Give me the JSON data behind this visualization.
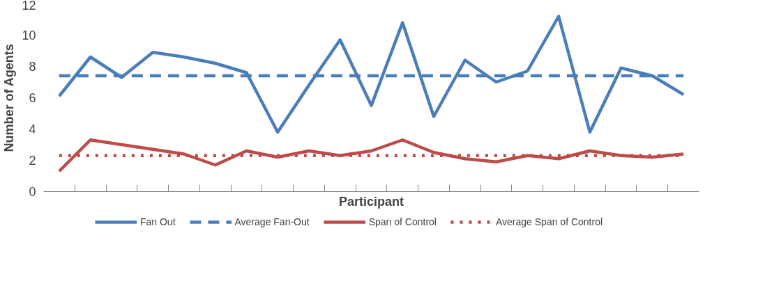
{
  "chart_data": {
    "type": "line",
    "xlabel": "Participant",
    "ylabel": "Number of Agents",
    "categories": [
      null,
      null,
      null,
      null,
      null,
      null,
      null,
      null,
      null,
      null,
      null,
      null,
      null,
      null,
      null,
      null,
      null,
      null,
      null,
      null,
      null
    ],
    "ylim": [
      0,
      12
    ],
    "yticks": [
      0,
      2,
      4,
      6,
      8,
      10,
      12
    ],
    "grid": false,
    "legend": "bottom",
    "marker": "none",
    "series": [
      {
        "name": "Fan Out",
        "color": "#4a7ebb",
        "line_style": "solid",
        "values": [
          6.1,
          8.6,
          7.3,
          8.9,
          8.6,
          8.2,
          7.6,
          3.8,
          6.8,
          9.7,
          5.5,
          10.8,
          4.8,
          8.4,
          7.0,
          7.7,
          11.2,
          3.8,
          7.9,
          7.4,
          6.2
        ]
      },
      {
        "name": "Average Fan-Out",
        "color": "#4a7ebb",
        "line_style": "dashed",
        "values": [
          7.4,
          7.4,
          7.4,
          7.4,
          7.4,
          7.4,
          7.4,
          7.4,
          7.4,
          7.4,
          7.4,
          7.4,
          7.4,
          7.4,
          7.4,
          7.4,
          7.4,
          7.4,
          7.4,
          7.4,
          7.4
        ]
      },
      {
        "name": "Span of Control",
        "color": "#be4b48",
        "line_style": "solid",
        "values": [
          1.3,
          3.3,
          3.0,
          2.7,
          2.4,
          1.7,
          2.6,
          2.2,
          2.6,
          2.3,
          2.6,
          3.3,
          2.5,
          2.1,
          1.9,
          2.3,
          2.1,
          2.6,
          2.3,
          2.2,
          2.4
        ]
      },
      {
        "name": "Average Span of Control",
        "color": "#be4b48",
        "line_style": "dotted",
        "values": [
          2.3,
          2.3,
          2.3,
          2.3,
          2.3,
          2.3,
          2.3,
          2.3,
          2.3,
          2.3,
          2.3,
          2.3,
          2.3,
          2.3,
          2.3,
          2.3,
          2.3,
          2.3,
          2.3,
          2.3,
          2.3
        ]
      }
    ]
  }
}
